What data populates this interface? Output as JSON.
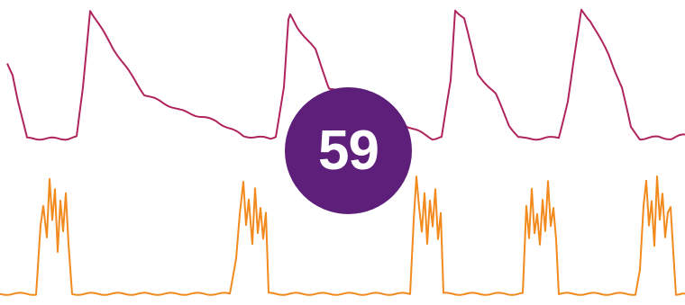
{
  "badge": {
    "value": "59",
    "color": "#5e1f7a"
  },
  "chart_data": {
    "type": "line",
    "title": "",
    "xlabel": "",
    "ylabel": "",
    "grid": false,
    "xlim": [
      0,
      760
    ],
    "series": [
      {
        "color": "#b0245e",
        "ylim": [
          0,
          1
        ],
        "x": [
          8,
          14,
          20,
          30,
          45,
          60,
          75,
          85,
          92,
          100,
          125,
          160,
          200,
          240,
          270,
          300,
          306,
          315,
          320,
          322,
          330,
          350,
          365,
          372,
          480,
          490,
          500,
          505,
          515,
          530,
          550,
          565,
          575,
          580,
          600,
          620,
          630,
          645,
          655,
          675,
          690,
          700,
          710,
          730,
          745,
          760
        ],
        "values": [
          0.58,
          0.5,
          0.3,
          0.02,
          0.02,
          0.02,
          0.02,
          0.03,
          0.4,
          0.98,
          0.7,
          0.35,
          0.23,
          0.15,
          0.04,
          0.02,
          0.04,
          0.4,
          0.9,
          0.94,
          0.85,
          0.68,
          0.4,
          0.38,
          0.02,
          0.03,
          0.45,
          0.98,
          0.92,
          0.5,
          0.35,
          0.12,
          0.03,
          0.02,
          0.02,
          0.03,
          0.3,
          0.98,
          0.9,
          0.65,
          0.4,
          0.1,
          0.02,
          0.03,
          0.02,
          0.05
        ]
      },
      {
        "color": "#f28a1e",
        "ylim": [
          0,
          1
        ],
        "x": [
          0,
          40,
          45,
          48,
          52,
          55,
          58,
          61,
          64,
          67,
          70,
          73,
          76,
          80,
          255,
          262,
          266,
          270,
          273,
          276,
          280,
          283,
          286,
          289,
          292,
          295,
          298,
          455,
          459,
          462,
          465,
          468,
          471,
          474,
          477,
          480,
          483,
          486,
          489,
          492,
          575,
          580,
          584,
          587,
          590,
          593,
          596,
          599,
          602,
          605,
          608,
          611,
          614,
          617,
          620,
          705,
          710,
          714,
          717,
          720,
          723,
          726,
          729,
          732,
          735,
          738,
          741,
          744,
          747,
          750,
          760
        ],
        "values": [
          0.01,
          0.01,
          0.55,
          0.7,
          0.45,
          0.92,
          0.6,
          0.85,
          0.35,
          0.75,
          0.5,
          0.8,
          0.4,
          0.01,
          0.01,
          0.3,
          0.65,
          0.9,
          0.55,
          0.75,
          0.4,
          0.85,
          0.5,
          0.7,
          0.45,
          0.65,
          0.01,
          0.01,
          0.6,
          0.95,
          0.7,
          0.5,
          0.8,
          0.4,
          0.75,
          0.55,
          0.85,
          0.45,
          0.65,
          0.01,
          0.01,
          0.01,
          0.7,
          0.45,
          0.85,
          0.5,
          0.65,
          0.4,
          0.75,
          0.5,
          0.9,
          0.55,
          0.7,
          0.45,
          0.01,
          0.01,
          0.2,
          0.7,
          0.9,
          0.55,
          0.75,
          0.4,
          0.95,
          0.6,
          0.8,
          0.45,
          0.65,
          0.7,
          0.35,
          0.01,
          0.01
        ]
      }
    ]
  }
}
